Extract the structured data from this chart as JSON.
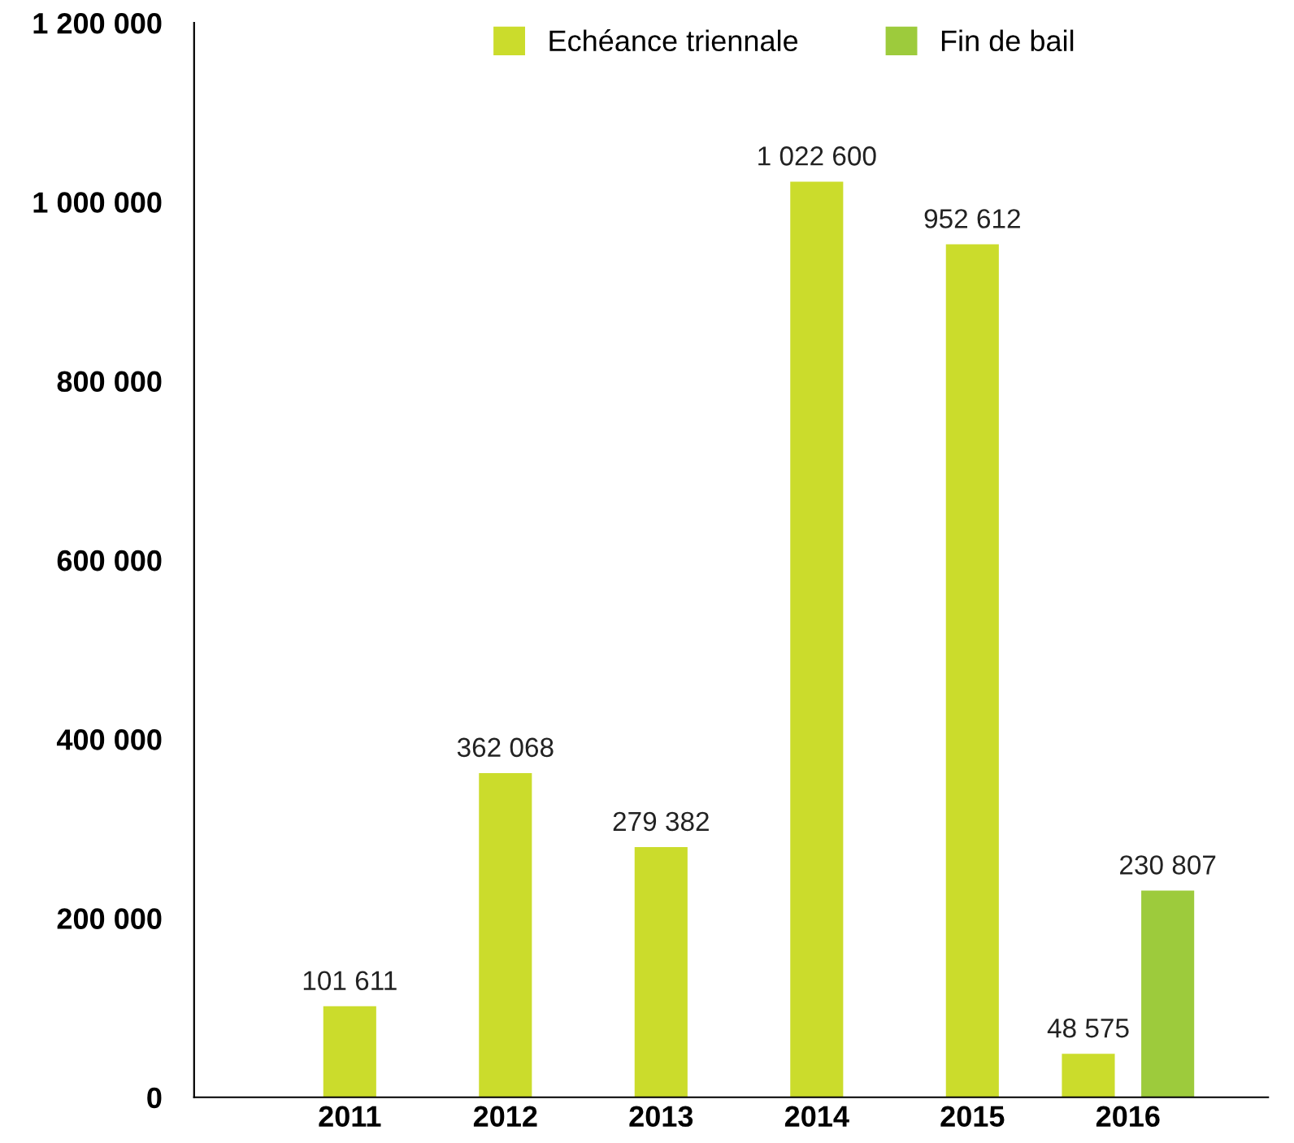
{
  "chart_data": {
    "type": "bar",
    "categories": [
      "2011",
      "2012",
      "2013",
      "2014",
      "2015",
      "2016"
    ],
    "series": [
      {
        "name": "Echéance triennale",
        "color": "#cbdc2c",
        "values": [
          101611,
          362068,
          279382,
          1022600,
          952612,
          48575
        ],
        "value_labels": [
          "101 611",
          "362 068",
          "279 382",
          "1 022 600",
          "952 612",
          "48 575"
        ]
      },
      {
        "name": "Fin de bail",
        "color": "#9dcb3c",
        "values": [
          null,
          null,
          null,
          null,
          null,
          230807
        ],
        "value_labels": [
          null,
          null,
          null,
          null,
          null,
          "230 807"
        ]
      }
    ],
    "ylim": [
      0,
      1200000
    ],
    "yticks": [
      {
        "value": 0,
        "label": "0"
      },
      {
        "value": 200000,
        "label": "200 000"
      },
      {
        "value": 400000,
        "label": "400 000"
      },
      {
        "value": 600000,
        "label": "600 000"
      },
      {
        "value": 800000,
        "label": "800 000"
      },
      {
        "value": 1000000,
        "label": "1 000 000"
      },
      {
        "value": 1200000,
        "label": "1 200 000"
      }
    ],
    "grid": false,
    "legend": "top"
  }
}
